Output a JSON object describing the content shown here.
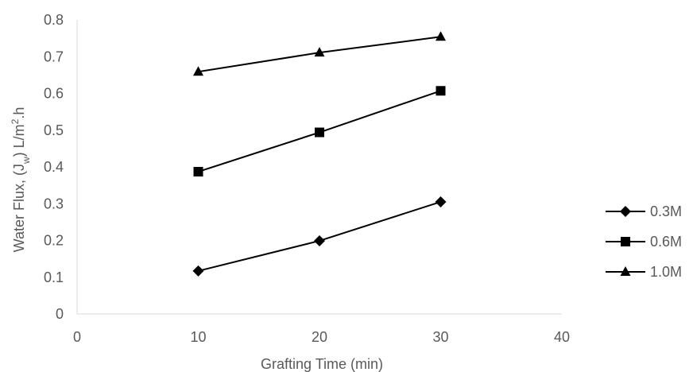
{
  "chart_data": {
    "type": "line",
    "xlabel": "Grafting Time (min)",
    "ylabel_parts": {
      "a": "Water Flux, (J",
      "b": "w",
      "c": ") L/m",
      "d": "2",
      "e": ".h"
    },
    "xlim": [
      0,
      40
    ],
    "ylim": [
      0,
      0.8
    ],
    "x_ticks": [
      0,
      10,
      20,
      30,
      40
    ],
    "y_ticks": [
      0,
      0.1,
      0.2,
      0.3,
      0.4,
      0.5,
      0.6,
      0.7,
      0.8
    ],
    "x_tick_labels": [
      "0",
      "10",
      "20",
      "30",
      "40"
    ],
    "y_tick_labels": [
      "0",
      "0.1",
      "0.2",
      "0.3",
      "0.4",
      "0.5",
      "0.6",
      "0.7",
      "0.8"
    ],
    "grid": false,
    "legend_position": "right",
    "series": [
      {
        "name": "0.3M",
        "marker": "diamond",
        "color": "#000000",
        "x": [
          10,
          20,
          30
        ],
        "y": [
          0.117,
          0.199,
          0.305
        ]
      },
      {
        "name": "0.6M",
        "marker": "square",
        "color": "#000000",
        "x": [
          10,
          20,
          30
        ],
        "y": [
          0.387,
          0.494,
          0.607
        ]
      },
      {
        "name": "1.0M",
        "marker": "triangle",
        "color": "#000000",
        "x": [
          10,
          20,
          30
        ],
        "y": [
          0.659,
          0.711,
          0.754
        ]
      }
    ]
  }
}
